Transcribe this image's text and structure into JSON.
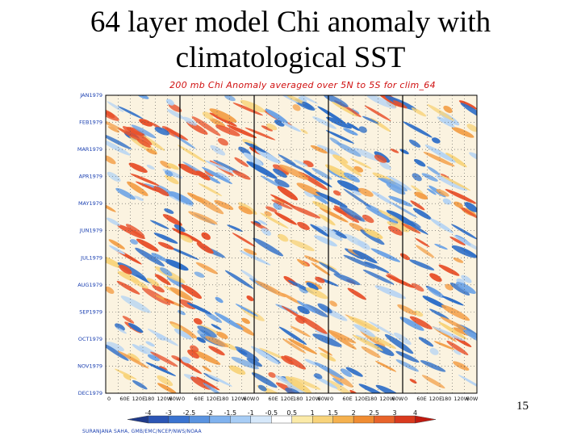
{
  "slide": {
    "title_line1": "64 layer model Chi anomaly with",
    "title_line2": "climatological SST",
    "page_number": "15",
    "credit": "SURANJANA SAHA, GMB/EMC/NCEP/NWS/NOAA"
  },
  "colors": {
    "positive": "#e8502a",
    "negative": "#3c7fd0",
    "neutral": "#fbf3e0"
  },
  "chart_data": {
    "type": "heatmap",
    "title": "200 mb Chi Anomaly averaged over 5N to 5S for clim_64",
    "y_ticks": [
      "JAN1979",
      "FEB1979",
      "MAR1979",
      "APR1979",
      "MAY1979",
      "JUN1979",
      "JUL1979",
      "AUG1979",
      "SEP1979",
      "OCT1979",
      "NOV1979",
      "DEC1979"
    ],
    "panels": 5,
    "x_ticks_per_panel": [
      "0",
      "60E",
      "120E",
      "180",
      "120W",
      "60W"
    ],
    "colorbar": {
      "levels": [
        "-4",
        "-3",
        "-2.5",
        "-2",
        "-1.5",
        "-1",
        "-0.5",
        "0.5",
        "1",
        "1.5",
        "2",
        "2.5",
        "3",
        "4"
      ],
      "colors": [
        "#1f3a8a",
        "#2b55b5",
        "#3a73d0",
        "#5a93e0",
        "#80b2ee",
        "#a8cdf5",
        "#d6e8fa",
        "#ffffff",
        "#fbeaa8",
        "#f8d37a",
        "#f5b14e",
        "#f08c32",
        "#e8632a",
        "#d93a1e",
        "#c01a10"
      ]
    }
  }
}
